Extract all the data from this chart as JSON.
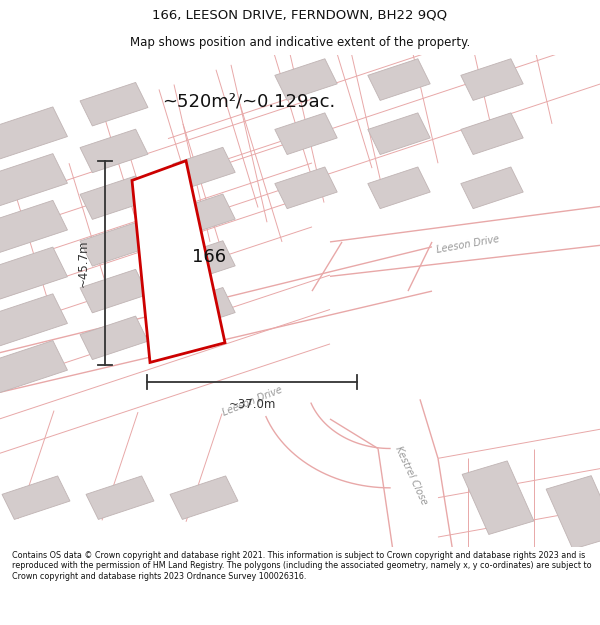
{
  "title": "166, LEESON DRIVE, FERNDOWN, BH22 9QQ",
  "subtitle": "Map shows position and indicative extent of the property.",
  "area_text": "~520m²/~0.129ac.",
  "label_166": "166",
  "dim_width": "~37.0m",
  "dim_height": "~45.7m",
  "road_label_leeson_diag": "Leeson Drive",
  "road_label_leeson_upper": "Leeson Drive",
  "road_label_kestrel": "Kestrel Close",
  "footer": "Contains OS data © Crown copyright and database right 2021. This information is subject to Crown copyright and database rights 2023 and is reproduced with the permission of HM Land Registry. The polygons (including the associated geometry, namely x, y co-ordinates) are subject to Crown copyright and database rights 2023 Ordnance Survey 100026316.",
  "bg_color": "#ffffff",
  "map_bg": "#f8f4f4",
  "road_color": "#e8a8a8",
  "building_fill": "#d4cccc",
  "building_edge": "#c0b4b4",
  "plot_outline_color": "#cc0000",
  "plot_fill": "#ffffff",
  "dim_color": "#333333",
  "title_color": "#111111",
  "footer_color": "#111111",
  "area_color": "#111111",
  "road_label_color": "#999999"
}
